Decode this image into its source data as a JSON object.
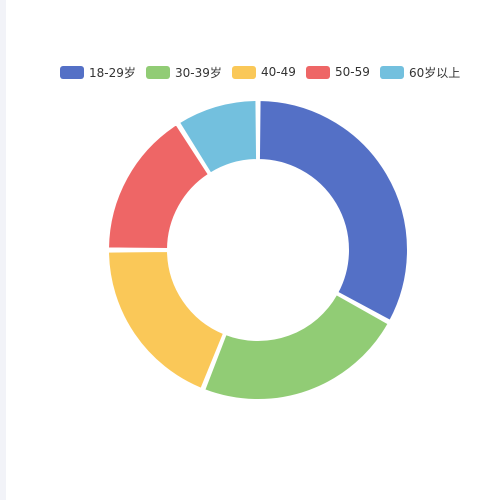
{
  "chart_data": {
    "type": "pie",
    "variant": "donut",
    "title": "",
    "legend_position": "top",
    "categories": [
      "18-29岁",
      "30-39岁",
      "40-49",
      "50-59",
      "60岁以上"
    ],
    "values": [
      33,
      23,
      19,
      16,
      9
    ],
    "colors": [
      "#5470c6",
      "#91cc75",
      "#fac858",
      "#ee6666",
      "#73c0de"
    ]
  }
}
